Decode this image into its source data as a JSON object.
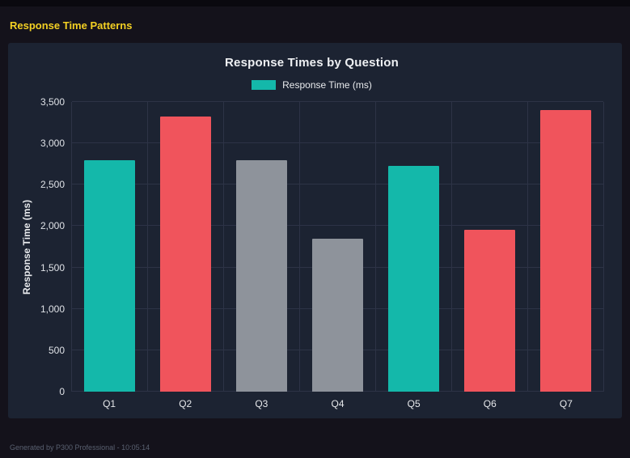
{
  "page": {
    "title": "Response Time Patterns"
  },
  "footer": {
    "text": "Generated by P300 Professional - 10:05:14"
  },
  "chart": {
    "title": "Response Times by Question",
    "legend": [
      {
        "label": "Response Time (ms)",
        "color": "#14b8aa"
      }
    ],
    "y_axis_title": "Response Time (ms)"
  },
  "chart_data": {
    "type": "bar",
    "title": "Response Times by Question",
    "categories": [
      "Q1",
      "Q2",
      "Q3",
      "Q4",
      "Q5",
      "Q6",
      "Q7"
    ],
    "values": [
      2800,
      3320,
      2800,
      1850,
      2730,
      1960,
      3400
    ],
    "bar_colors": [
      "#14b8aa",
      "#f0545c",
      "#8e939b",
      "#8e939b",
      "#14b8aa",
      "#f0545c",
      "#f0545c"
    ],
    "xlabel": "",
    "ylabel": "Response Time (ms)",
    "ylim": [
      0,
      3500
    ],
    "y_ticks": [
      {
        "value": 0,
        "label": "0"
      },
      {
        "value": 500,
        "label": "500"
      },
      {
        "value": 1000,
        "label": "1,000"
      },
      {
        "value": 1500,
        "label": "1,500"
      },
      {
        "value": 2000,
        "label": "2,000"
      },
      {
        "value": 2500,
        "label": "2,500"
      },
      {
        "value": 3000,
        "label": "3,000"
      },
      {
        "value": 3500,
        "label": "3,500"
      }
    ],
    "grid": true,
    "legend_position": "top",
    "legend_label": "Response Time (ms)"
  },
  "colors": {
    "teal": "#14b8aa",
    "red": "#f0545c",
    "gray": "#8e939b",
    "accent_yellow": "#f3d023",
    "panel_bg": "#1c2332",
    "page_bg": "#14121b",
    "gridline": "#2d3346"
  }
}
